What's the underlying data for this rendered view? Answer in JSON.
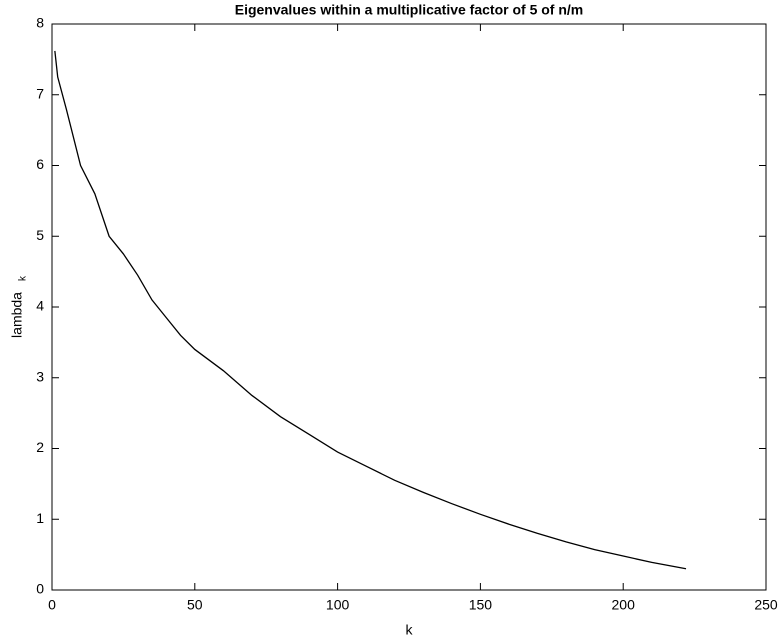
{
  "chart_data": {
    "type": "line",
    "title": "Eigenvalues within a multiplicative factor of 5 of n/m",
    "xlabel": "k",
    "ylabel": "lambda",
    "ylabel_subscript": "k",
    "x": [
      1,
      2,
      5,
      10,
      15,
      20,
      25,
      30,
      35,
      40,
      45,
      50,
      60,
      70,
      80,
      90,
      100,
      110,
      120,
      130,
      140,
      150,
      160,
      170,
      180,
      190,
      200,
      210,
      222
    ],
    "series": [
      {
        "name": "lambda_k",
        "color": "#000000",
        "values": [
          7.62,
          7.25,
          6.8,
          6.0,
          5.6,
          5.0,
          4.75,
          4.45,
          4.1,
          3.85,
          3.6,
          3.4,
          3.1,
          2.75,
          2.45,
          2.2,
          1.95,
          1.75,
          1.55,
          1.38,
          1.22,
          1.07,
          0.93,
          0.8,
          0.68,
          0.57,
          0.48,
          0.39,
          0.3
        ]
      }
    ],
    "xlim": [
      0,
      250
    ],
    "xticks": [
      0,
      50,
      100,
      150,
      200,
      250
    ],
    "ylim": [
      0,
      8
    ],
    "yticks": [
      0,
      1,
      2,
      3,
      4,
      5,
      6,
      7,
      8
    ]
  }
}
